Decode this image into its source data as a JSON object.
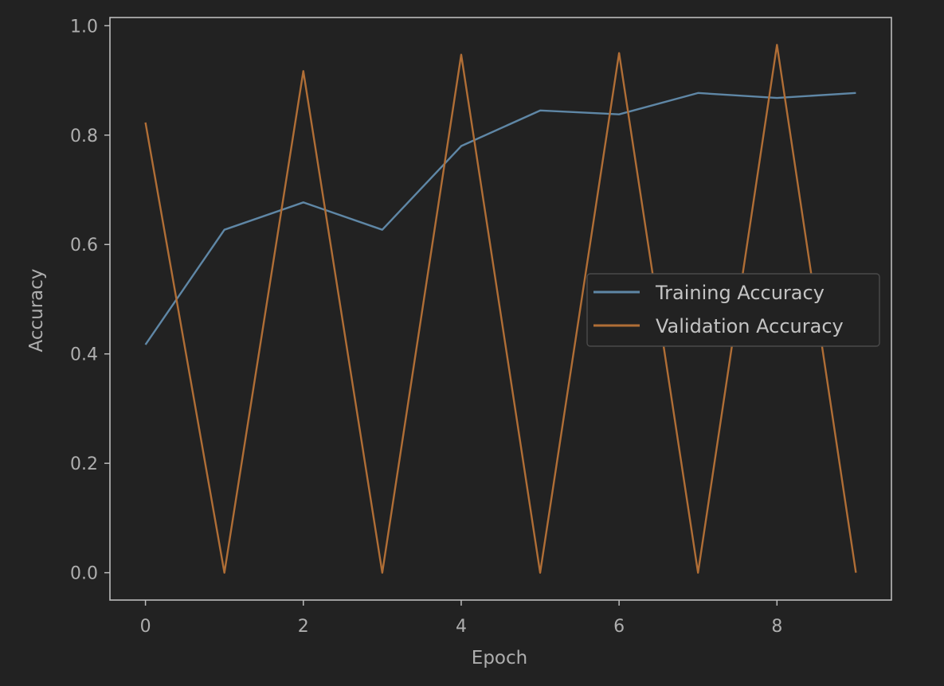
{
  "chart_data": {
    "type": "line",
    "title": "",
    "xlabel": "Epoch",
    "ylabel": "Accuracy",
    "x": [
      0,
      1,
      2,
      3,
      4,
      5,
      6,
      7,
      8,
      9
    ],
    "xlim": [
      -0.45,
      9.45
    ],
    "ylim": [
      -0.05,
      1.015
    ],
    "xticks": [
      0,
      2,
      4,
      6,
      8
    ],
    "xtick_labels": [
      "0",
      "2",
      "4",
      "6",
      "8"
    ],
    "yticks": [
      0.0,
      0.2,
      0.4,
      0.6,
      0.8,
      1.0
    ],
    "ytick_labels": [
      "0.0",
      "0.2",
      "0.4",
      "0.6",
      "0.8",
      "1.0"
    ],
    "grid": false,
    "legend_position": "center-right",
    "series": [
      {
        "name": "Training Accuracy",
        "color": "#5f87a6",
        "values": [
          0.417,
          0.627,
          0.677,
          0.627,
          0.78,
          0.845,
          0.838,
          0.877,
          0.868,
          0.877
        ]
      },
      {
        "name": "Validation Accuracy",
        "color": "#b06e36",
        "values": [
          0.823,
          0.0,
          0.917,
          0.0,
          0.947,
          0.0,
          0.95,
          0.0,
          0.965,
          0.0
        ]
      }
    ],
    "colors": {
      "background": "#222222",
      "axes_edge": "#bcbcbc",
      "text": "#aeaeae"
    }
  }
}
